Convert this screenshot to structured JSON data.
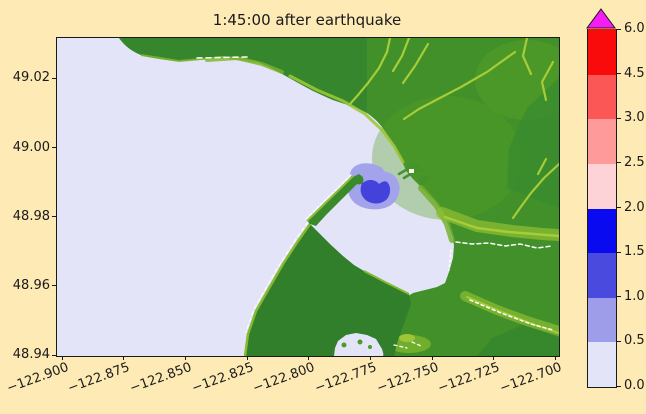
{
  "figure": {
    "title": "1:45:00 after earthquake",
    "background_color": "#fdeab5",
    "sea_color": "#e4e4f8",
    "land_color": "#41902a",
    "border_color": "#1a1a1a"
  },
  "axes": {
    "x": {
      "labels": [
        "−122.900",
        "−122.875",
        "−122.850",
        "−122.825",
        "−122.800",
        "−122.775",
        "−122.750",
        "−122.725",
        "−122.700"
      ],
      "values": [
        -122.9,
        -122.875,
        -122.85,
        -122.825,
        -122.8,
        -122.775,
        -122.75,
        -122.725,
        -122.7
      ],
      "lim": [
        -122.9025,
        -122.699
      ],
      "rotation_deg": 20
    },
    "y": {
      "labels": [
        "49.02",
        "49.00",
        "48.98",
        "48.96",
        "48.94"
      ],
      "values": [
        49.02,
        49.0,
        48.98,
        48.96,
        48.94
      ],
      "lim": [
        48.94,
        49.032
      ]
    }
  },
  "colorbar": {
    "levels": [
      0.0,
      0.5,
      1.0,
      1.5,
      2.0,
      2.5,
      3.0,
      4.5,
      6.0
    ],
    "labels": [
      "0.0",
      "0.5",
      "1.0",
      "1.5",
      "2.0",
      "2.5",
      "3.0",
      "4.5",
      "6.0"
    ],
    "colors": [
      "#e4e4f8",
      "#9d9dea",
      "#4a4adf",
      "#0a0af0",
      "#fdd3d8",
      "#ff9a9a",
      "#fb5757",
      "#fa0b0b"
    ],
    "over_color": "#f41df4",
    "extend": "max",
    "spacing": "uniform"
  },
  "chart_data": {
    "type": "heatmap",
    "title": "1:45:00 after earthquake",
    "xlabel": "",
    "ylabel": "",
    "xlim": [
      -122.9025,
      -122.699
    ],
    "ylim": [
      48.94,
      49.032
    ],
    "xticks": [
      -122.9,
      -122.875,
      -122.85,
      -122.825,
      -122.8,
      -122.775,
      -122.75,
      -122.725,
      -122.7
    ],
    "yticks": [
      49.02,
      49.0,
      48.98,
      48.96,
      48.94
    ],
    "colorbar_levels": [
      0.0,
      0.5,
      1.0,
      1.5,
      2.0,
      2.5,
      3.0,
      4.5,
      6.0
    ],
    "colorbar_colors": [
      "#e4e4f8",
      "#9d9dea",
      "#4a4adf",
      "#0a0af0",
      "#fdd3d8",
      "#ff9a9a",
      "#fb5757",
      "#fa0b0b"
    ],
    "colorbar_over_color": "#f41df4",
    "grid": false,
    "legend": "colorbar-right",
    "features": [
      {
        "name": "open-sea",
        "fill": "#e4e4f8",
        "value_range": [
          0.0,
          0.5
        ]
      },
      {
        "name": "wave-outer-ring",
        "fill": "#a3a3ec",
        "value_range": [
          0.5,
          1.0
        ],
        "center_lon": -122.774,
        "center_lat": 48.988
      },
      {
        "name": "wave-core",
        "fill": "#4343dc",
        "value_range": [
          1.0,
          1.5
        ],
        "center_lon": -122.774,
        "center_lat": 48.988
      },
      {
        "name": "land",
        "fill": "#41902a"
      },
      {
        "name": "river-valleys",
        "fill": "#a6cc38"
      },
      {
        "name": "beaches-creeks",
        "fill": "#ffffff"
      }
    ]
  }
}
